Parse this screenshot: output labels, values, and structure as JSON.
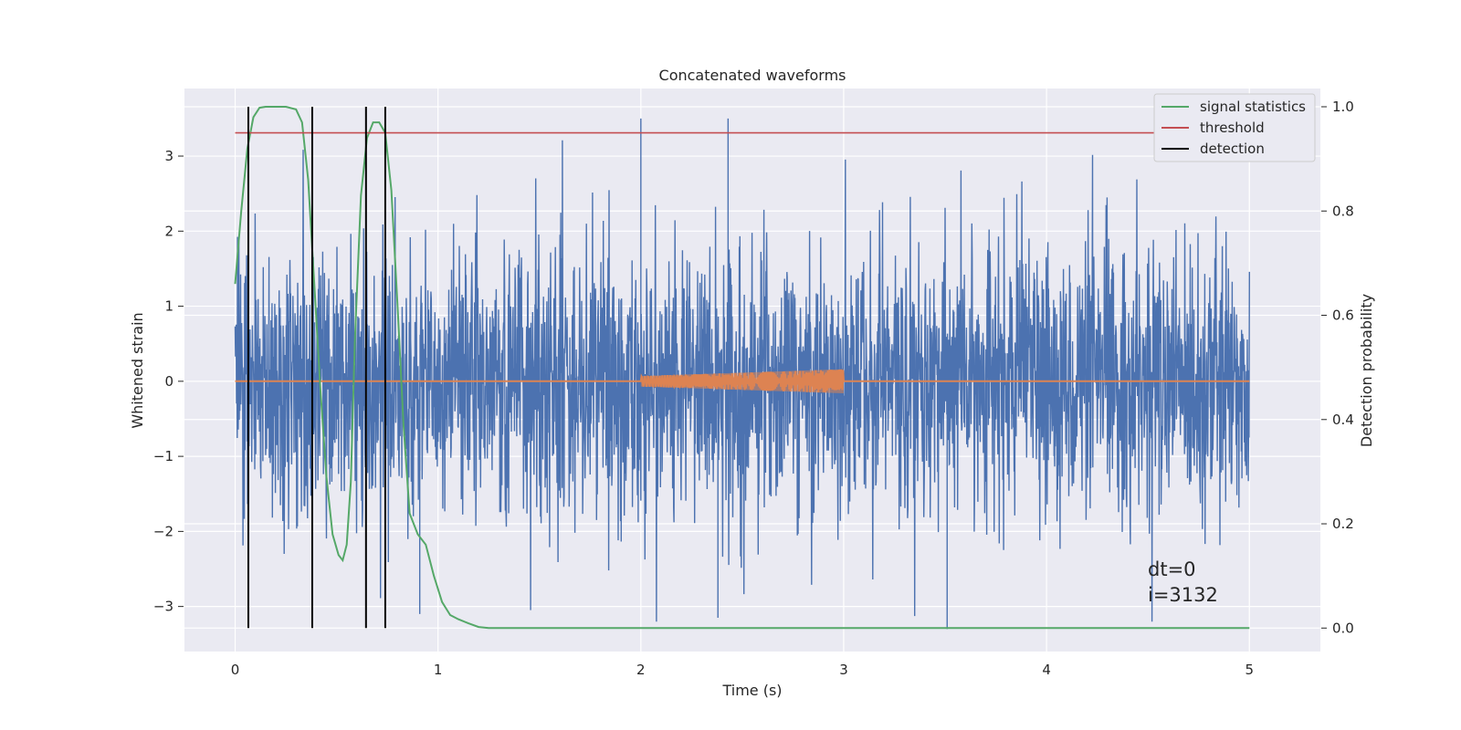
{
  "chart_data": {
    "type": "line",
    "title": "Concatenated waveforms",
    "xlabel": "Time (s)",
    "ylabel": "Whitened strain",
    "y2label": "Detection probability",
    "xlim": [
      -0.25,
      5.35
    ],
    "ylim": [
      -3.6,
      3.9
    ],
    "y2lim": [
      -0.045,
      1.035
    ],
    "x_ticks": [
      0,
      1,
      2,
      3,
      4,
      5
    ],
    "x_tick_labels": [
      "0",
      "1",
      "2",
      "3",
      "4",
      "5"
    ],
    "y_ticks": [
      -3,
      -2,
      -1,
      0,
      1,
      2,
      3
    ],
    "y_tick_labels": [
      "−3",
      "−2",
      "−1",
      "0",
      "1",
      "2",
      "3"
    ],
    "y2_ticks": [
      0.0,
      0.2,
      0.4,
      0.6,
      0.8,
      1.0
    ],
    "y2_tick_labels": [
      "0.0",
      "0.2",
      "0.4",
      "0.6",
      "0.8",
      "1.0"
    ],
    "grid": true,
    "legend_position": "top-right",
    "colors": {
      "background": "#eaeaf2",
      "grid": "#ffffff",
      "strain": "#4c72b0",
      "injection": "#dd8452",
      "signal_statistics": "#55a868",
      "threshold": "#c44e52",
      "detection": "#000000"
    },
    "series": [
      {
        "name": "whitened strain",
        "axis": "left",
        "style": "noise",
        "x_range": [
          0,
          5
        ],
        "typical_envelope": [
          -1.4,
          1.4
        ],
        "max_value": 3.5,
        "min_value": -3.3
      },
      {
        "name": "injected waveform",
        "axis": "left",
        "style": "chirp",
        "x_range": [
          0,
          5
        ],
        "chirp_start": 2.0,
        "chirp_end": 3.0,
        "amp_start": 0.07,
        "amp_end": 0.16
      },
      {
        "name": "signal statistics",
        "axis": "right",
        "x": [
          0.0,
          0.03,
          0.06,
          0.09,
          0.12,
          0.15,
          0.2,
          0.25,
          0.3,
          0.33,
          0.36,
          0.39,
          0.42,
          0.45,
          0.48,
          0.51,
          0.53,
          0.55,
          0.57,
          0.59,
          0.62,
          0.65,
          0.68,
          0.71,
          0.74,
          0.77,
          0.8,
          0.83,
          0.86,
          0.9,
          0.94,
          0.98,
          1.02,
          1.06,
          1.1,
          1.15,
          1.2,
          1.25,
          5.0
        ],
        "values": [
          0.66,
          0.8,
          0.92,
          0.98,
          0.998,
          1.0,
          1.0,
          1.0,
          0.995,
          0.97,
          0.86,
          0.66,
          0.46,
          0.29,
          0.18,
          0.14,
          0.13,
          0.16,
          0.28,
          0.55,
          0.83,
          0.94,
          0.97,
          0.97,
          0.95,
          0.84,
          0.62,
          0.39,
          0.22,
          0.18,
          0.16,
          0.1,
          0.05,
          0.025,
          0.017,
          0.009,
          0.002,
          0.0,
          0.0
        ]
      },
      {
        "name": "threshold",
        "axis": "right",
        "x": [
          0,
          5
        ],
        "values": [
          0.95,
          0.95
        ]
      },
      {
        "name": "detection",
        "axis": "right",
        "x": [
          0.065,
          0.38,
          0.645,
          0.74
        ],
        "values": [
          1.0,
          1.0,
          1.0,
          1.0
        ]
      }
    ],
    "legend": [
      "signal statistics",
      "threshold",
      "detection"
    ],
    "annotations": [
      "dt=0",
      "i=3132"
    ]
  }
}
